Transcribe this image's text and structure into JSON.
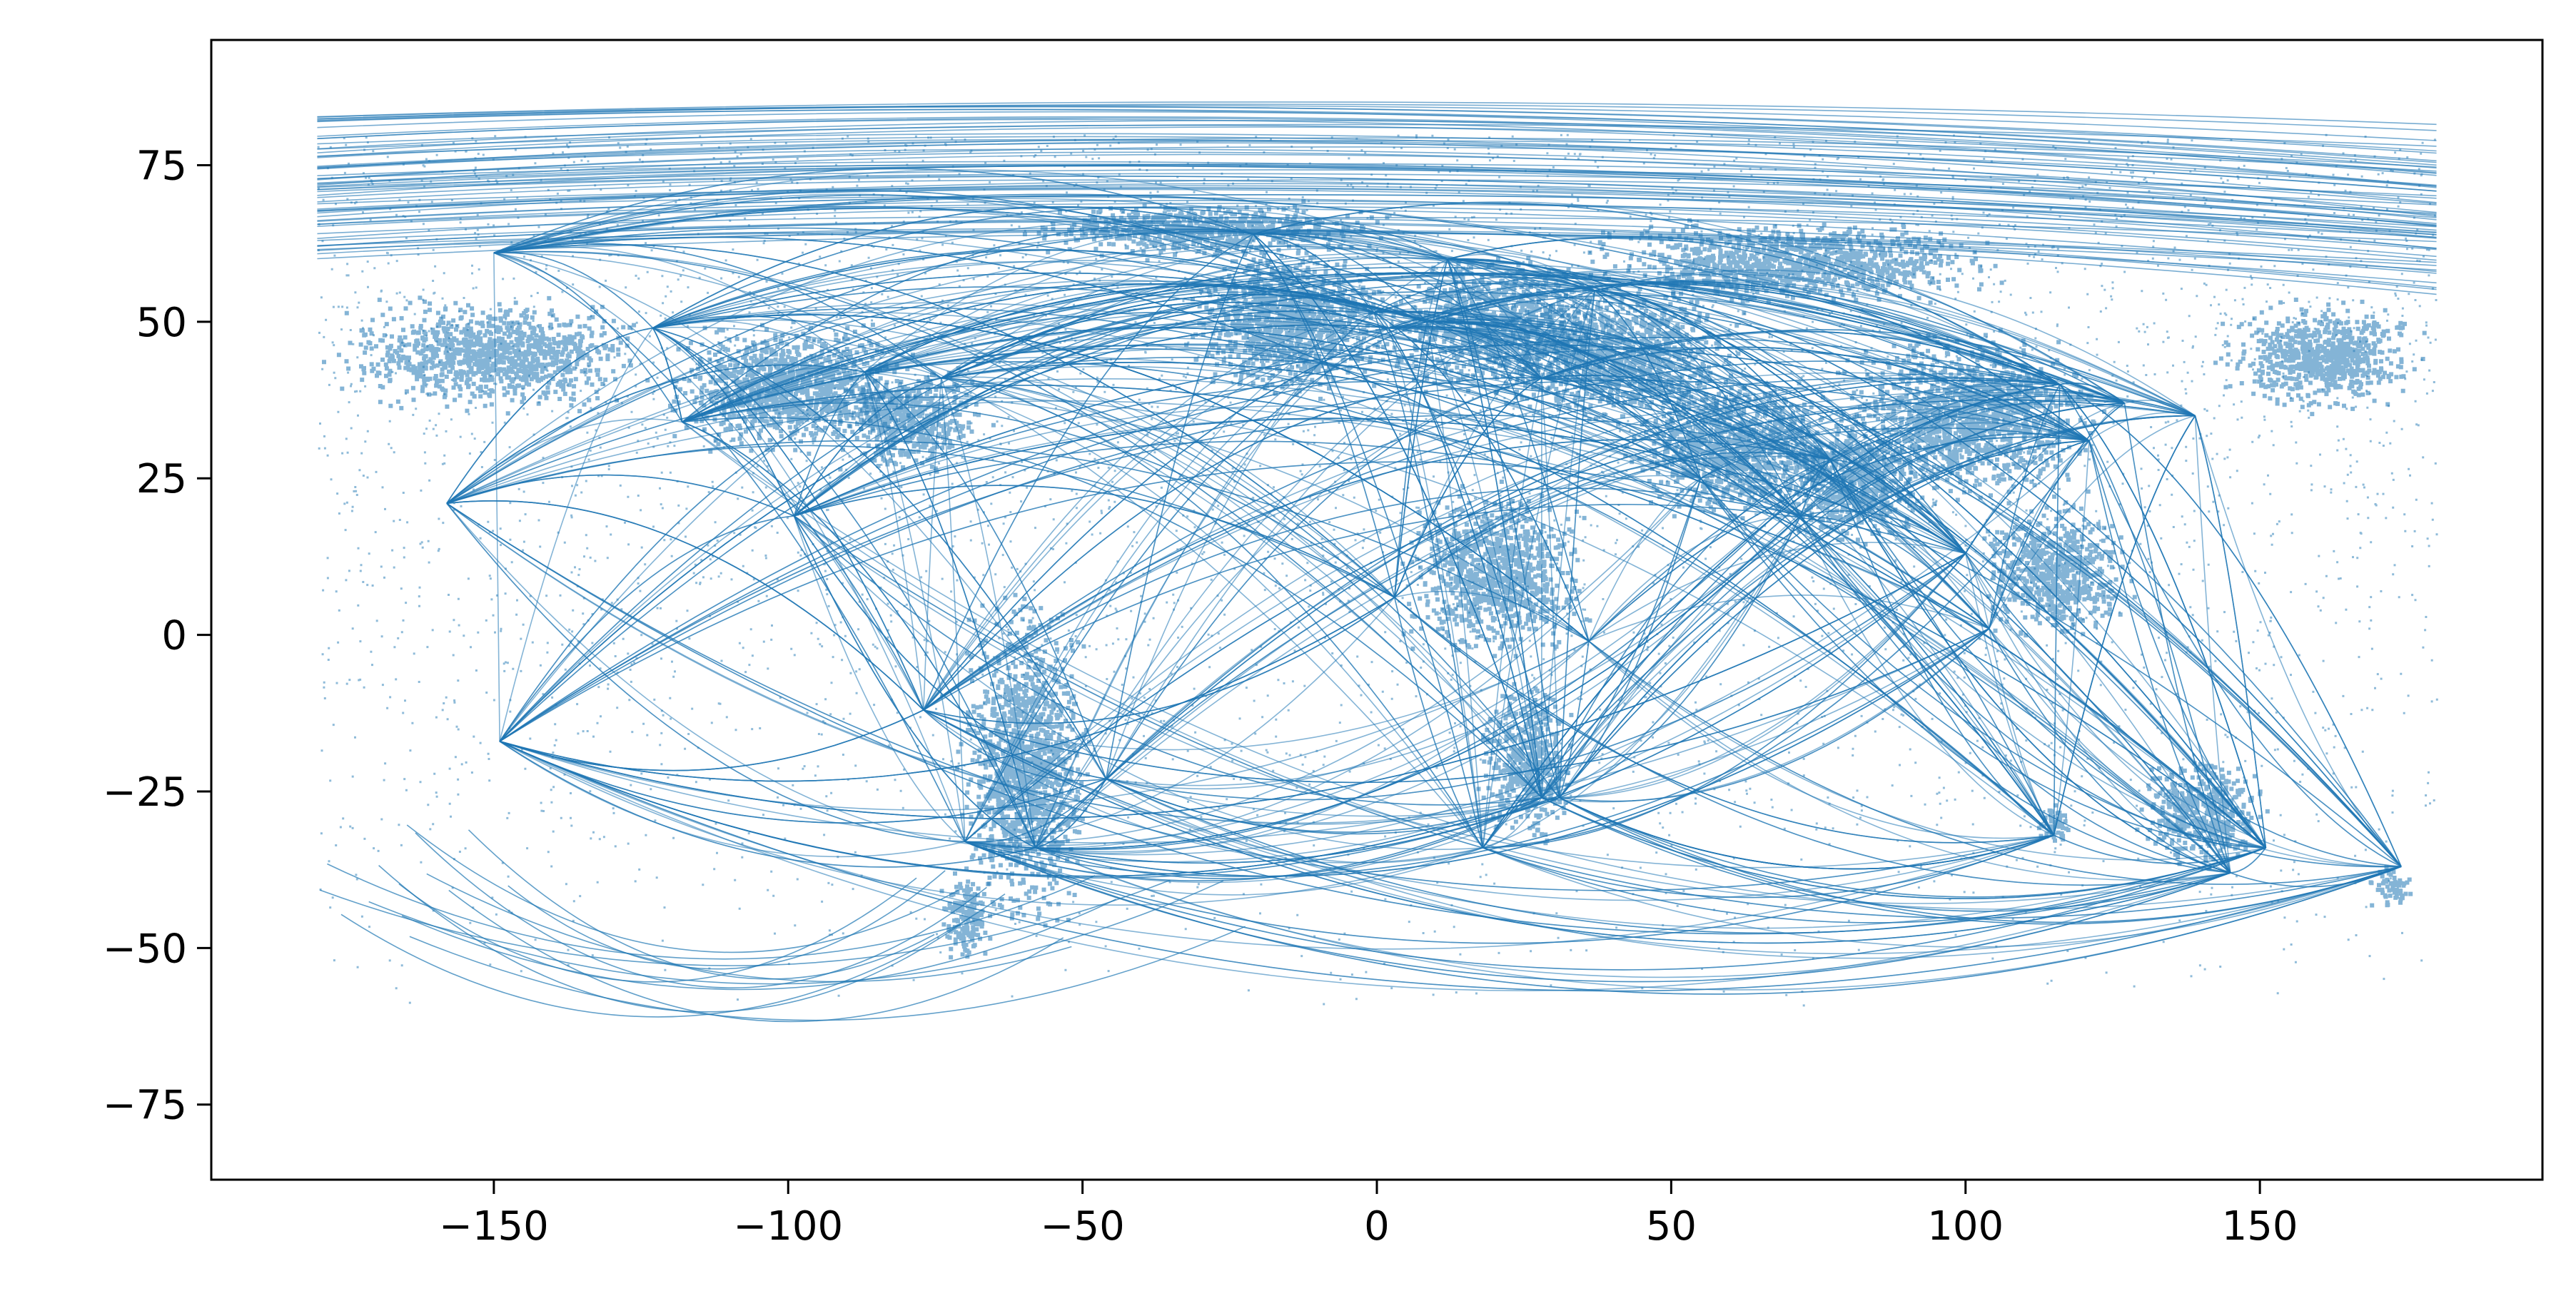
{
  "chart_data": {
    "type": "scatter",
    "title": "",
    "xlabel": "",
    "ylabel": "",
    "xlim": [
      -198,
      198
    ],
    "ylim": [
      -87,
      95
    ],
    "xticks": [
      -150,
      -100,
      -50,
      0,
      50,
      100,
      150
    ],
    "yticks": [
      75,
      50,
      25,
      0,
      -25,
      -50,
      -75
    ],
    "xtick_labels": [
      "−150",
      "−100",
      "−50",
      "0",
      "50",
      "100",
      "150"
    ],
    "ytick_labels": [
      "75",
      "50",
      "25",
      "0",
      "−25",
      "−50",
      "−75"
    ],
    "grid": false,
    "legend": "none",
    "color": "#1f77b4",
    "description_of_marks": "very dense point cloud along great-circle flight routes",
    "hubs": [
      {
        "x": -100,
        "y": 40,
        "w": 50,
        "h": 24
      },
      {
        "x": -80,
        "y": 35,
        "w": 30,
        "h": 20
      },
      {
        "x": -60,
        "y": -20,
        "w": 25,
        "h": 60
      },
      {
        "x": -70,
        "y": -45,
        "w": 10,
        "h": 18
      },
      {
        "x": -15,
        "y": 50,
        "w": 40,
        "h": 28
      },
      {
        "x": 20,
        "y": 50,
        "w": 45,
        "h": 25
      },
      {
        "x": 40,
        "y": 45,
        "w": 50,
        "h": 25
      },
      {
        "x": 20,
        "y": 10,
        "w": 35,
        "h": 30
      },
      {
        "x": 25,
        "y": -20,
        "w": 18,
        "h": 30
      },
      {
        "x": 60,
        "y": 30,
        "w": 40,
        "h": 25
      },
      {
        "x": 80,
        "y": 25,
        "w": 30,
        "h": 25
      },
      {
        "x": 100,
        "y": 35,
        "w": 50,
        "h": 30
      },
      {
        "x": 115,
        "y": 10,
        "w": 30,
        "h": 25
      },
      {
        "x": 140,
        "y": -28,
        "w": 25,
        "h": 20
      },
      {
        "x": 115,
        "y": -30,
        "w": 8,
        "h": 8
      },
      {
        "x": 172,
        "y": -40,
        "w": 8,
        "h": 8
      },
      {
        "x": -150,
        "y": 45,
        "w": 60,
        "h": 20
      },
      {
        "x": 160,
        "y": 45,
        "w": 40,
        "h": 20
      },
      {
        "x": 70,
        "y": 60,
        "w": 80,
        "h": 15
      },
      {
        "x": -30,
        "y": 65,
        "w": 70,
        "h": 10
      }
    ],
    "route_endpoints": [
      [
        -118,
        34
      ],
      [
        -74,
        41
      ],
      [
        -87,
        42
      ],
      [
        -99,
        19
      ],
      [
        -46,
        -23
      ],
      [
        -58,
        -34
      ],
      [
        -70,
        -33
      ],
      [
        -77,
        -12
      ],
      [
        -0.5,
        51.5
      ],
      [
        2,
        49
      ],
      [
        8.5,
        50
      ],
      [
        37,
        55
      ],
      [
        28,
        41
      ],
      [
        55,
        25
      ],
      [
        31,
        -26
      ],
      [
        18,
        -34
      ],
      [
        3,
        6
      ],
      [
        36,
        -1
      ],
      [
        77,
        28
      ],
      [
        72,
        19
      ],
      [
        100,
        13
      ],
      [
        104,
        1
      ],
      [
        121,
        31
      ],
      [
        116,
        40
      ],
      [
        139,
        35
      ],
      [
        127,
        37
      ],
      [
        151,
        -34
      ],
      [
        145,
        -38
      ],
      [
        115,
        -32
      ],
      [
        174,
        -37
      ],
      [
        -158,
        21
      ],
      [
        -149,
        -17
      ],
      [
        -150,
        61
      ],
      [
        -123,
        49
      ],
      [
        -21,
        64
      ],
      [
        28,
        -26
      ],
      [
        12,
        60
      ]
    ]
  }
}
